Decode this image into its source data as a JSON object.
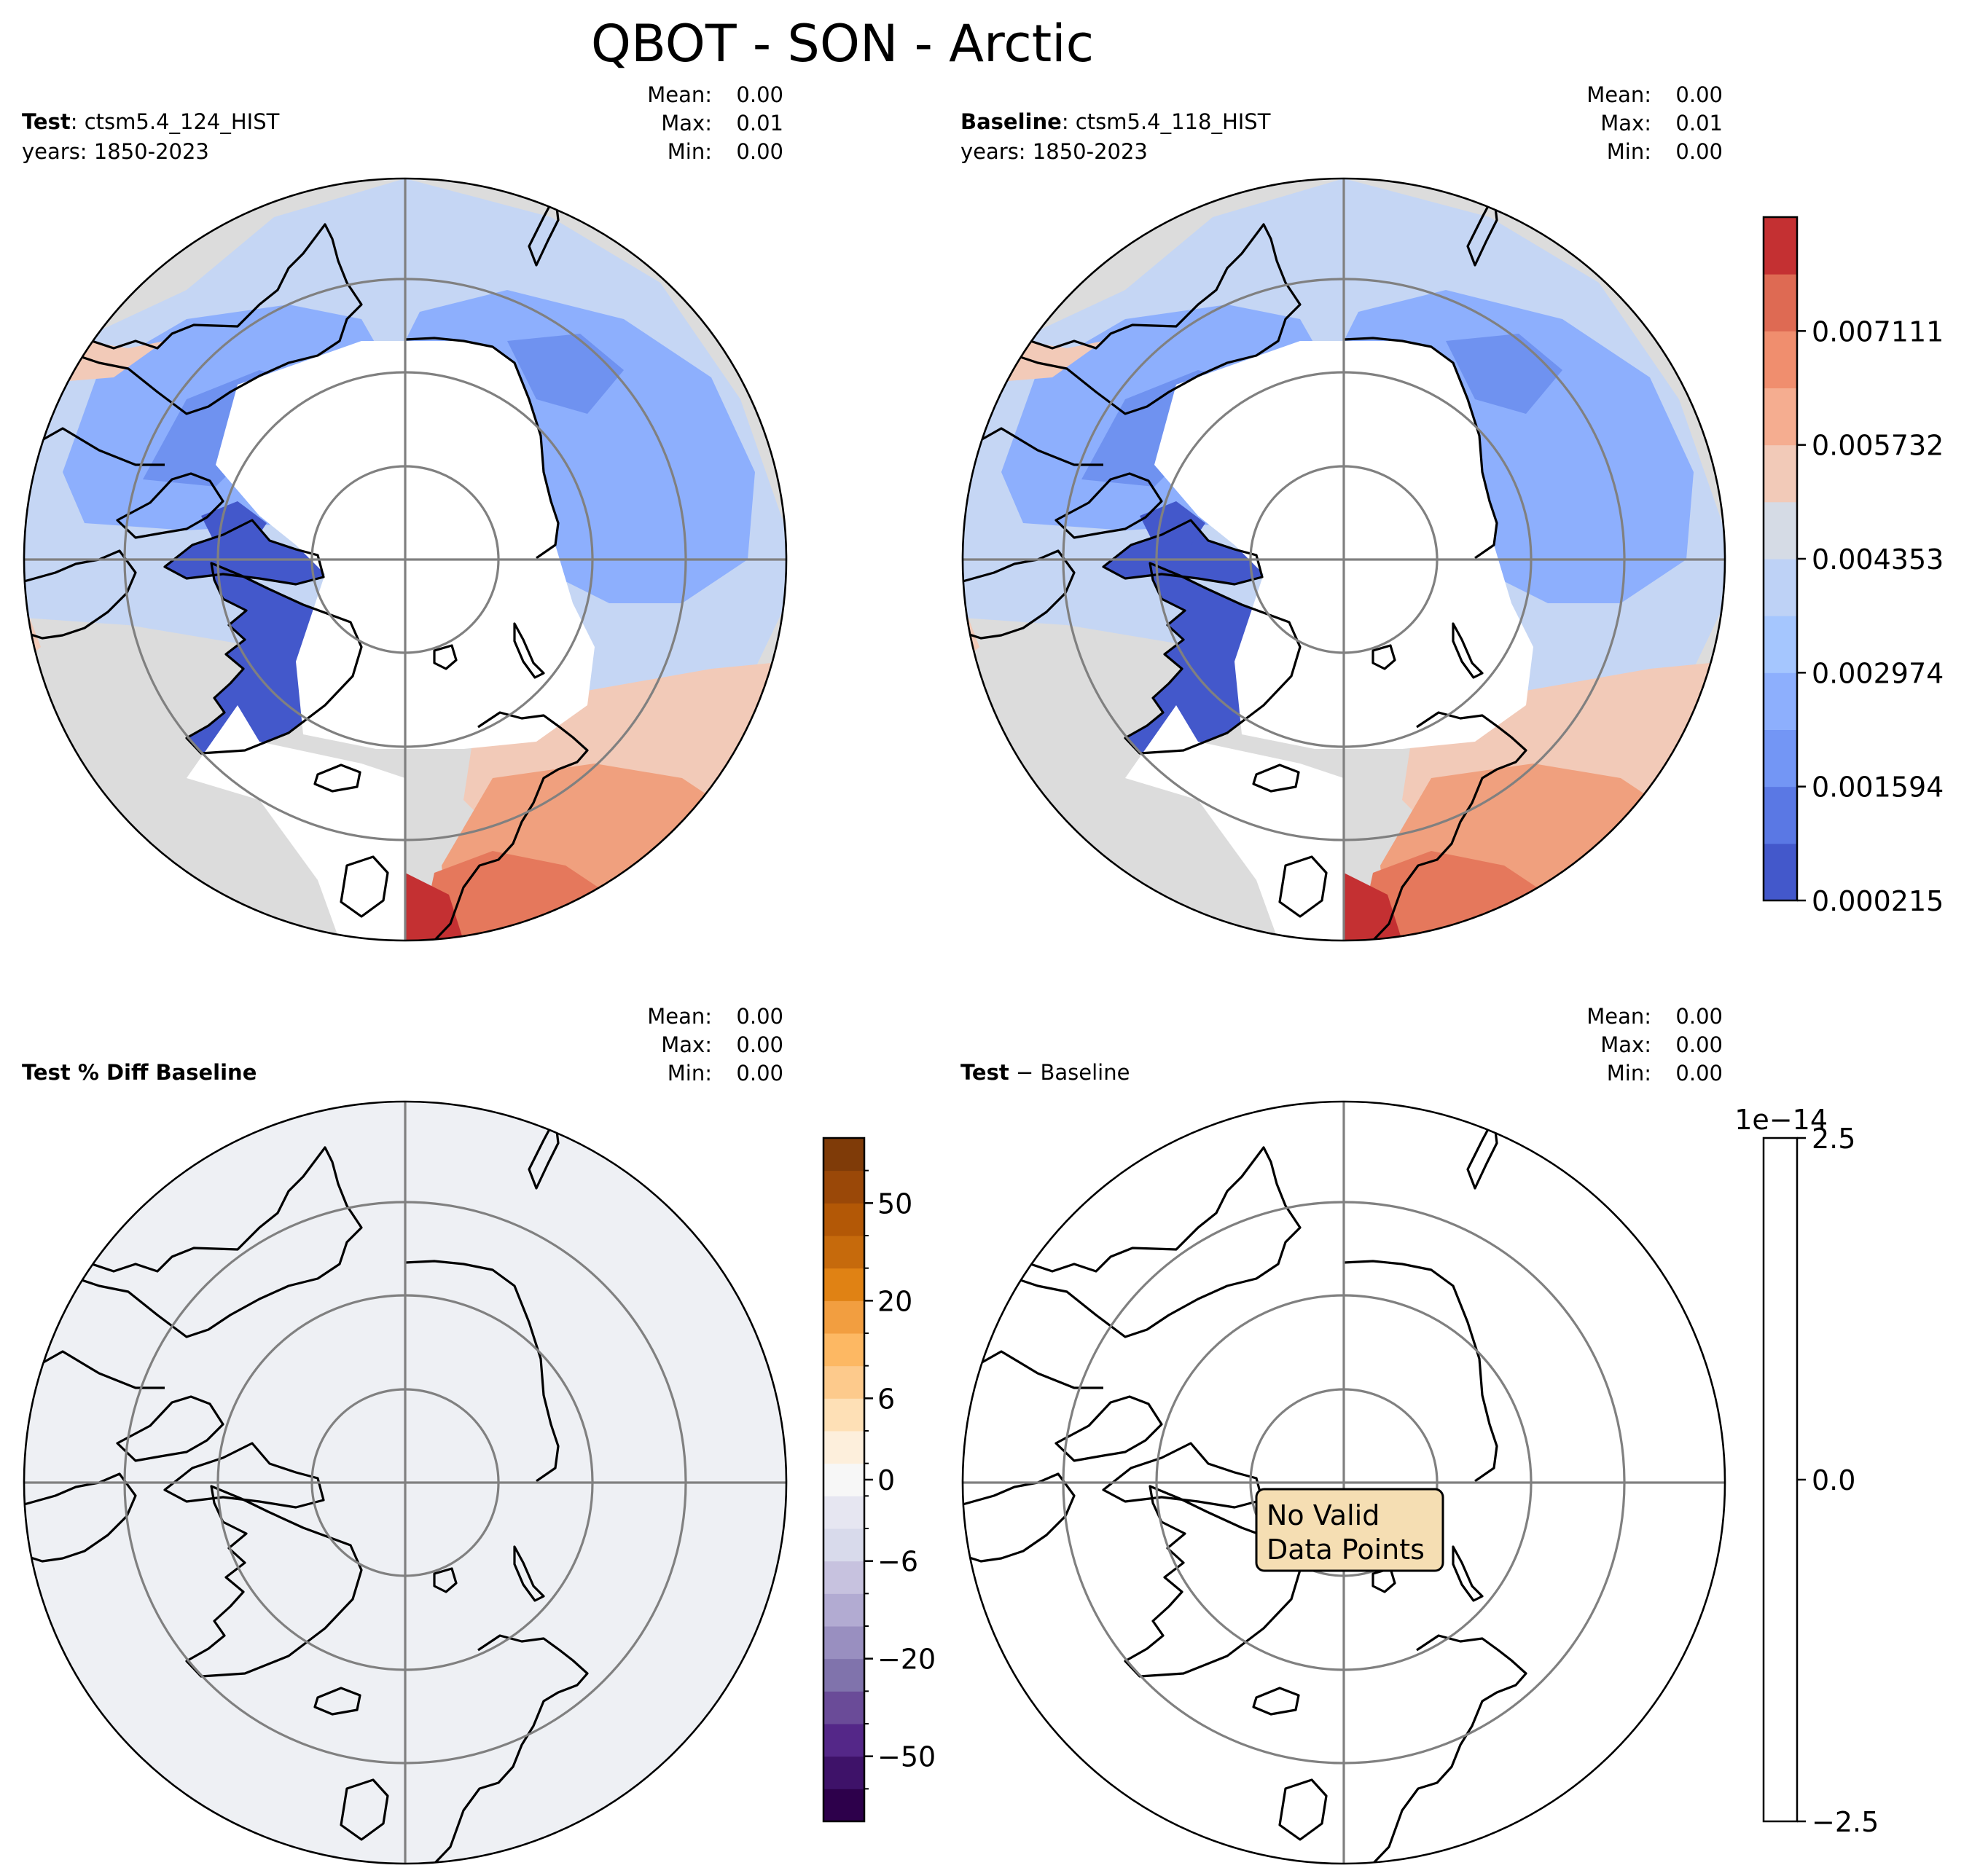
{
  "figure": {
    "title": "QBOT - SON - Arctic"
  },
  "panels": [
    {
      "id": "test",
      "title_bold": "Test",
      "title_rest": ": ctsm5.4_124_HIST",
      "years": "years: 1850-2023",
      "stats": {
        "mean_label": "Mean:",
        "mean": "0.00",
        "max_label": "Max:",
        "max": "0.01",
        "min_label": "Min:",
        "min": "0.00"
      }
    },
    {
      "id": "baseline",
      "title_bold": "Baseline",
      "title_rest": ": ctsm5.4_118_HIST",
      "years": "years: 1850-2023",
      "stats": {
        "mean_label": "Mean:",
        "mean": "0.00",
        "max_label": "Max:",
        "max": "0.01",
        "min_label": "Min:",
        "min": "0.00"
      }
    },
    {
      "id": "pct-diff",
      "title_bold": "Test % Diff Baseline",
      "title_rest": "",
      "years": "",
      "stats": {
        "mean_label": "Mean:",
        "mean": "0.00",
        "max_label": "Max:",
        "max": "0.00",
        "min_label": "Min:",
        "min": "0.00"
      }
    },
    {
      "id": "diff",
      "title_bold": "Test",
      "title_rest": " − Baseline",
      "years": "",
      "stats": {
        "mean_label": "Mean:",
        "mean": "0.00",
        "max_label": "Max:",
        "max": "0.00",
        "min_label": "Min:",
        "min": "0.00"
      },
      "annotation": [
        "No Valid",
        "Data Points"
      ]
    }
  ],
  "colorbars": {
    "main": {
      "ticks": [
        "0.000215",
        "0.001594",
        "0.002974",
        "0.004353",
        "0.005732",
        "0.007111"
      ],
      "colors": [
        "#4358cb",
        "#5a78e4",
        "#7396f5",
        "#8daffd",
        "#a5c6fe",
        "#bed2f6",
        "#d5dbe5",
        "#f2cab8",
        "#f5ad90",
        "#f08e6e",
        "#de6a53",
        "#c43032"
      ]
    },
    "pct": {
      "ticks": [
        "−50",
        "−20",
        "−6",
        "0",
        "6",
        "20",
        "50"
      ],
      "colors": [
        "#2d004b",
        "#3e1269",
        "#542788",
        "#6a4b98",
        "#8073ac",
        "#998fc0",
        "#b2abd2",
        "#c7c2df",
        "#d8daeb",
        "#e6e6f1",
        "#f7f7f7",
        "#fdefdc",
        "#fee0b6",
        "#fdca8c",
        "#fdb863",
        "#f29e40",
        "#e08214",
        "#c66a0c",
        "#b35806",
        "#9a4808",
        "#7f3b08"
      ]
    },
    "diff": {
      "ticks": [
        "2.5",
        "0.0",
        "−2.5"
      ],
      "offset": "1e−14"
    }
  },
  "map": {
    "pct_fill": "#eef0f4",
    "field_colors": {
      "gray": "#dcdcdc",
      "ltblue": "#c5d6f4",
      "blue": "#8daffd",
      "midblue": "#6f92f0",
      "dkblue": "#4358cb",
      "peach": "#f2cab8",
      "salmon": "#f0a07e",
      "orange": "#e5785c",
      "red": "#c43032"
    }
  }
}
